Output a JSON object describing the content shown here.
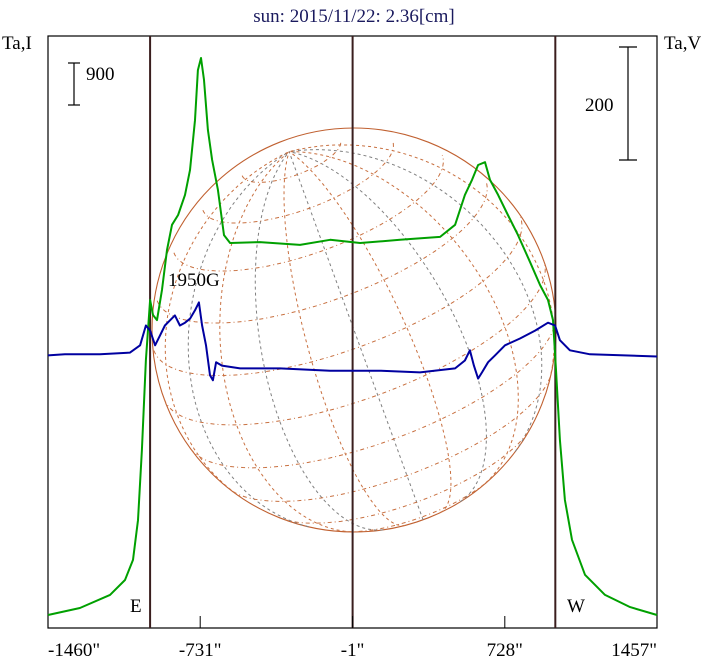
{
  "chart_data": {
    "type": "line",
    "title": "sun: 2015/11/22: 2.36[cm]",
    "ylabel_left": "Ta,I",
    "ylabel_right": "Ta,V",
    "xlabel": "",
    "x_unit": "arcsec",
    "xlim": [
      -1460,
      1457
    ],
    "x_tick_labels": [
      "-1460\"",
      "-731\"",
      "-1\"",
      "728\"",
      "1457\""
    ],
    "x_ticks": [
      -1460,
      -731,
      -1,
      728,
      1457
    ],
    "limb_lines": [
      -971,
      -1,
      970
    ],
    "limb_labels": {
      "east": "E",
      "west": "W"
    },
    "scale_bars": {
      "intensity": "900",
      "polarization": "200"
    },
    "scale_bar_values": {
      "intensity": 900,
      "polarization": 200
    },
    "annotation": "1950G",
    "ylim_left": [
      -278,
      12390
    ],
    "ylim_right": [
      -483,
      566
    ],
    "series": [
      {
        "name": "Ta,I (intensity)",
        "axis": "left",
        "color": "#00a000",
        "x": [
          -1460,
          -1307,
          -1163,
          -1091,
          -1053,
          -1029,
          -1010,
          -991,
          -971,
          -957,
          -938,
          -914,
          -890,
          -866,
          -837,
          -804,
          -780,
          -756,
          -742,
          -727,
          -713,
          -694,
          -674,
          -646,
          -617,
          -588,
          -445,
          -253,
          -109,
          35,
          226,
          418,
          490,
          537,
          571,
          600,
          633,
          657,
          696,
          743,
          791,
          849,
          897,
          935,
          959,
          973,
          992,
          1016,
          1050,
          1112,
          1208,
          1328,
          1457
        ],
        "y": [
          0,
          150,
          430,
          750,
          1180,
          2030,
          3530,
          5460,
          6740,
          6420,
          6310,
          6960,
          7810,
          8350,
          8560,
          8990,
          9520,
          10590,
          11660,
          11920,
          11450,
          10380,
          9740,
          9100,
          8130,
          7960,
          7980,
          7920,
          8030,
          7960,
          8030,
          8090,
          8350,
          8990,
          9310,
          9630,
          9690,
          9310,
          8990,
          8560,
          8130,
          7550,
          7060,
          6740,
          6310,
          5240,
          3750,
          2460,
          1610,
          860,
          430,
          170,
          0
        ]
      },
      {
        "name": "Ta,V (polarization)",
        "axis": "right",
        "color": "#0000a0",
        "x": [
          -1460,
          -1379,
          -1211,
          -1067,
          -1019,
          -991,
          -971,
          -947,
          -924,
          -900,
          -876,
          -852,
          -828,
          -804,
          -780,
          -756,
          -737,
          -722,
          -703,
          -684,
          -670,
          -655,
          -627,
          -540,
          -349,
          -109,
          130,
          322,
          490,
          537,
          561,
          580,
          600,
          619,
          648,
          681,
          729,
          801,
          873,
          935,
          969,
          992,
          1040,
          1136,
          1457
        ],
        "y": [
          0,
          2,
          2,
          5,
          18,
          53,
          44,
          18,
          35,
          53,
          62,
          71,
          53,
          58,
          65,
          80,
          94,
          53,
          18,
          -35,
          -44,
          -12,
          -18,
          -23,
          -23,
          -27,
          -27,
          -30,
          -23,
          -9,
          9,
          -18,
          -41,
          -30,
          -12,
          0,
          18,
          30,
          44,
          58,
          53,
          27,
          9,
          2,
          -2
        ]
      }
    ],
    "grid": false,
    "overlay": "heliographic grid on solar disk",
    "colors": {
      "frame": "#000000",
      "limb": "#3a1e1e",
      "disk": "#c06030",
      "grid_orange": "#c87040",
      "grid_grey": "#808080"
    }
  }
}
